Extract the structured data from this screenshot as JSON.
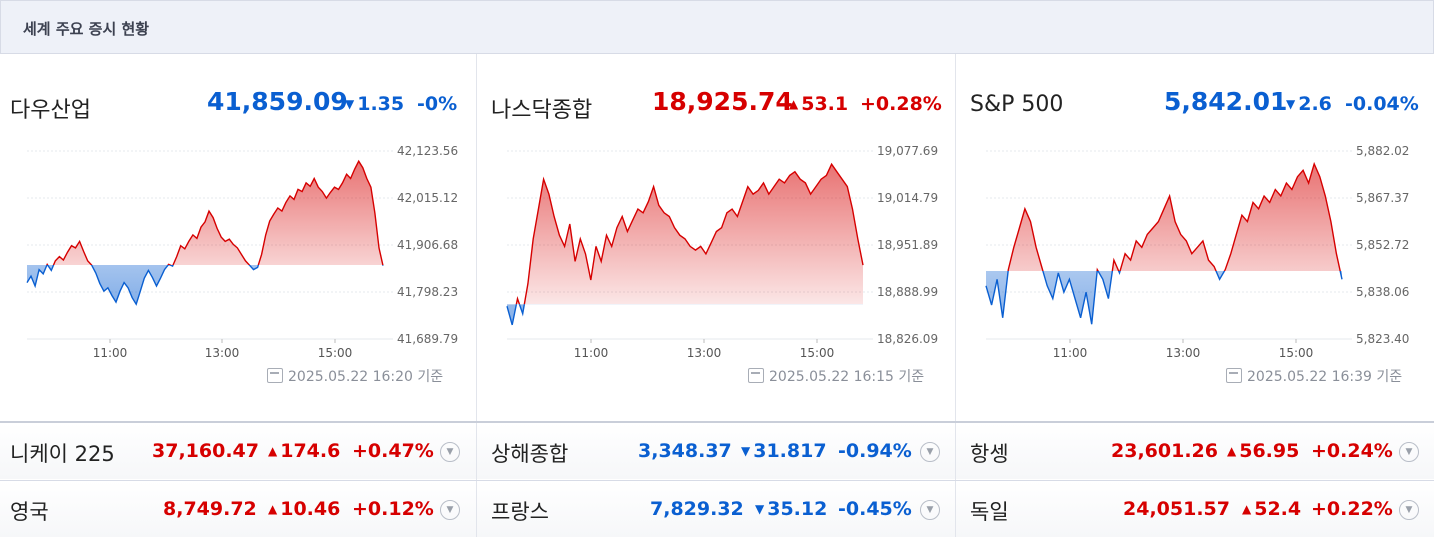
{
  "header": {
    "title": "세계 주요 증시 현황"
  },
  "colors": {
    "up": "#d60000",
    "down": "#0a5fd1"
  },
  "panels": [
    {
      "name": "다우산업",
      "value": "41,859.09",
      "direction": "down",
      "change": "1.35",
      "percent": "-0%",
      "basis": "2025.05.22 16:20 기준",
      "chart_data": {
        "type": "area",
        "x_ticks": [
          "11:00",
          "13:00",
          "15:00"
        ],
        "y_ticks": [
          "42,123.56",
          "42,015.12",
          "41,906.68",
          "41,798.23",
          "41,689.79"
        ],
        "ylim": [
          41689.79,
          42123.56
        ],
        "baseline": 41860.44,
        "values": [
          41820,
          41835,
          41812,
          41850,
          41840,
          41862,
          41848,
          41870,
          41880,
          41872,
          41890,
          41905,
          41900,
          41915,
          41892,
          41870,
          41860,
          41842,
          41818,
          41800,
          41808,
          41790,
          41775,
          41800,
          41820,
          41808,
          41785,
          41770,
          41800,
          41830,
          41848,
          41832,
          41812,
          41830,
          41850,
          41862,
          41858,
          41880,
          41905,
          41898,
          41915,
          41930,
          41922,
          41948,
          41960,
          41985,
          41970,
          41945,
          41925,
          41915,
          41920,
          41908,
          41900,
          41885,
          41870,
          41860,
          41850,
          41855,
          41885,
          41930,
          41962,
          41978,
          41992,
          41985,
          42005,
          42020,
          42012,
          42035,
          42030,
          42050,
          42042,
          42060,
          42040,
          42030,
          42015,
          42028,
          42040,
          42035,
          42050,
          42070,
          42060,
          42082,
          42100,
          42085,
          42060,
          42040,
          41980,
          41900,
          41859
        ]
      }
    },
    {
      "name": "나스닥종합",
      "value": "18,925.74",
      "direction": "up",
      "change": "53.1",
      "percent": "+0.28%",
      "basis": "2025.05.22 16:15 기준",
      "chart_data": {
        "type": "area",
        "x_ticks": [
          "11:00",
          "13:00",
          "15:00"
        ],
        "y_ticks": [
          "19,077.69",
          "19,014.79",
          "18,951.89",
          "18,888.99",
          "18,826.09"
        ],
        "ylim": [
          18826.09,
          19077.69
        ],
        "baseline": 18872.64,
        "values": [
          18870,
          18845,
          18880,
          18860,
          18900,
          18960,
          19000,
          19040,
          19020,
          18990,
          18965,
          18950,
          18980,
          18930,
          18960,
          18940,
          18905,
          18950,
          18930,
          18965,
          18950,
          18975,
          18990,
          18970,
          18985,
          19000,
          18995,
          19010,
          19030,
          19005,
          18995,
          18990,
          18975,
          18965,
          18960,
          18950,
          18945,
          18950,
          18940,
          18955,
          18970,
          18975,
          18995,
          19000,
          18990,
          19010,
          19030,
          19020,
          19025,
          19035,
          19020,
          19030,
          19040,
          19035,
          19045,
          19050,
          19040,
          19035,
          19020,
          19030,
          19040,
          19045,
          19060,
          19050,
          19040,
          19030,
          19000,
          18960,
          18925
        ]
      }
    },
    {
      "name": "S&P 500",
      "value": "5,842.01",
      "direction": "down",
      "change": "2.6",
      "percent": "-0.04%",
      "basis": "2025.05.22 16:39 기준",
      "chart_data": {
        "type": "area",
        "x_ticks": [
          "11:00",
          "13:00",
          "15:00"
        ],
        "y_ticks": [
          "5,882.02",
          "5,867.37",
          "5,852.72",
          "5,838.06",
          "5,823.40"
        ],
        "ylim": [
          5823.4,
          5882.02
        ],
        "baseline": 5844.61,
        "values": [
          5840,
          5834,
          5842,
          5830,
          5845,
          5852,
          5858,
          5864,
          5860,
          5852,
          5846,
          5840,
          5836,
          5844,
          5838,
          5842,
          5836,
          5830,
          5838,
          5828,
          5845,
          5842,
          5836,
          5848,
          5844,
          5850,
          5848,
          5854,
          5852,
          5856,
          5858,
          5860,
          5864,
          5868,
          5860,
          5856,
          5854,
          5850,
          5852,
          5854,
          5848,
          5846,
          5842,
          5845,
          5850,
          5856,
          5862,
          5860,
          5866,
          5864,
          5868,
          5866,
          5870,
          5868,
          5872,
          5870,
          5874,
          5876,
          5872,
          5878,
          5874,
          5868,
          5860,
          5850,
          5842
        ]
      }
    }
  ],
  "rows": [
    [
      {
        "name": "니케이 225",
        "value": "37,160.47",
        "direction": "up",
        "change": "174.6",
        "percent": "+0.47%"
      },
      {
        "name": "상해종합",
        "value": "3,348.37",
        "direction": "down",
        "change": "31.817",
        "percent": "-0.94%"
      },
      {
        "name": "항셍",
        "value": "23,601.26",
        "direction": "up",
        "change": "56.95",
        "percent": "+0.24%"
      }
    ],
    [
      {
        "name": "영국",
        "value": "8,749.72",
        "direction": "up",
        "change": "10.46",
        "percent": "+0.12%"
      },
      {
        "name": "프랑스",
        "value": "7,829.32",
        "direction": "down",
        "change": "35.12",
        "percent": "-0.45%"
      },
      {
        "name": "독일",
        "value": "24,051.57",
        "direction": "up",
        "change": "52.4",
        "percent": "+0.22%"
      }
    ]
  ],
  "icons": {
    "more": "chevron-down-icon",
    "calendar": "calendar-refresh-icon"
  }
}
